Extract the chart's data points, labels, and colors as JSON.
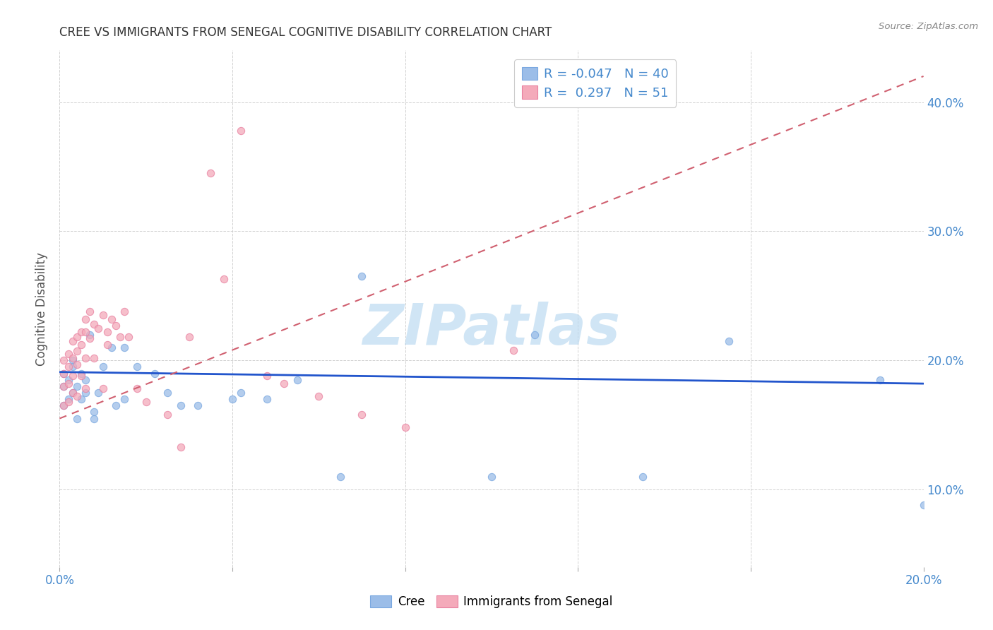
{
  "title": "CREE VS IMMIGRANTS FROM SENEGAL COGNITIVE DISABILITY CORRELATION CHART",
  "source": "Source: ZipAtlas.com",
  "ylabel": "Cognitive Disability",
  "xlim": [
    0.0,
    0.2
  ],
  "ylim": [
    0.04,
    0.44
  ],
  "xtick_positions": [
    0.0,
    0.04,
    0.08,
    0.12,
    0.16,
    0.2
  ],
  "xtick_labels": [
    "0.0%",
    "",
    "",
    "",
    "",
    "20.0%"
  ],
  "ytick_labels_right": [
    "10.0%",
    "20.0%",
    "30.0%",
    "40.0%"
  ],
  "ytick_vals_right": [
    0.1,
    0.2,
    0.3,
    0.4
  ],
  "watermark": "ZIPatlas",
  "watermark_color": "#b8d8f0",
  "cree_color": "#9bbde8",
  "cree_edge_color": "#7aa8e0",
  "senegal_color": "#f4aaba",
  "senegal_edge_color": "#e880a0",
  "cree_line_color": "#2255cc",
  "senegal_line_color": "#d06070",
  "legend_R_cree": "-0.047",
  "legend_N_cree": "40",
  "legend_R_senegal": "0.297",
  "legend_N_senegal": "51",
  "background_color": "#ffffff",
  "grid_color": "#cccccc",
  "title_color": "#333333",
  "axis_label_color": "#4488cc",
  "cree_scatter_x": [
    0.001,
    0.001,
    0.001,
    0.002,
    0.002,
    0.003,
    0.003,
    0.003,
    0.004,
    0.004,
    0.005,
    0.005,
    0.006,
    0.006,
    0.007,
    0.008,
    0.008,
    0.009,
    0.01,
    0.012,
    0.013,
    0.015,
    0.015,
    0.018,
    0.022,
    0.025,
    0.028,
    0.032,
    0.04,
    0.042,
    0.055,
    0.07,
    0.1,
    0.11,
    0.135,
    0.155,
    0.19,
    0.2,
    0.048,
    0.065
  ],
  "cree_scatter_y": [
    0.19,
    0.18,
    0.165,
    0.185,
    0.17,
    0.2,
    0.195,
    0.175,
    0.18,
    0.155,
    0.19,
    0.17,
    0.185,
    0.175,
    0.22,
    0.16,
    0.155,
    0.175,
    0.195,
    0.21,
    0.165,
    0.21,
    0.17,
    0.195,
    0.19,
    0.175,
    0.165,
    0.165,
    0.17,
    0.175,
    0.185,
    0.265,
    0.11,
    0.22,
    0.11,
    0.215,
    0.185,
    0.088,
    0.17,
    0.11
  ],
  "senegal_scatter_x": [
    0.001,
    0.001,
    0.001,
    0.001,
    0.002,
    0.002,
    0.002,
    0.002,
    0.003,
    0.003,
    0.003,
    0.003,
    0.004,
    0.004,
    0.004,
    0.004,
    0.005,
    0.005,
    0.005,
    0.006,
    0.006,
    0.006,
    0.006,
    0.007,
    0.007,
    0.008,
    0.008,
    0.009,
    0.01,
    0.01,
    0.011,
    0.011,
    0.012,
    0.013,
    0.014,
    0.015,
    0.016,
    0.018,
    0.02,
    0.025,
    0.028,
    0.03,
    0.035,
    0.038,
    0.042,
    0.048,
    0.052,
    0.06,
    0.07,
    0.08,
    0.105
  ],
  "senegal_scatter_y": [
    0.2,
    0.19,
    0.18,
    0.165,
    0.205,
    0.195,
    0.182,
    0.168,
    0.215,
    0.202,
    0.188,
    0.175,
    0.218,
    0.207,
    0.197,
    0.172,
    0.222,
    0.212,
    0.188,
    0.232,
    0.222,
    0.202,
    0.178,
    0.238,
    0.217,
    0.228,
    0.202,
    0.225,
    0.235,
    0.178,
    0.222,
    0.212,
    0.232,
    0.227,
    0.218,
    0.238,
    0.218,
    0.178,
    0.168,
    0.158,
    0.133,
    0.218,
    0.345,
    0.263,
    0.378,
    0.188,
    0.182,
    0.172,
    0.158,
    0.148,
    0.208
  ],
  "cree_line_x": [
    0.0,
    0.2
  ],
  "cree_line_y": [
    0.191,
    0.182
  ],
  "senegal_line_x": [
    0.0,
    0.2
  ],
  "senegal_line_y": [
    0.155,
    0.42
  ]
}
